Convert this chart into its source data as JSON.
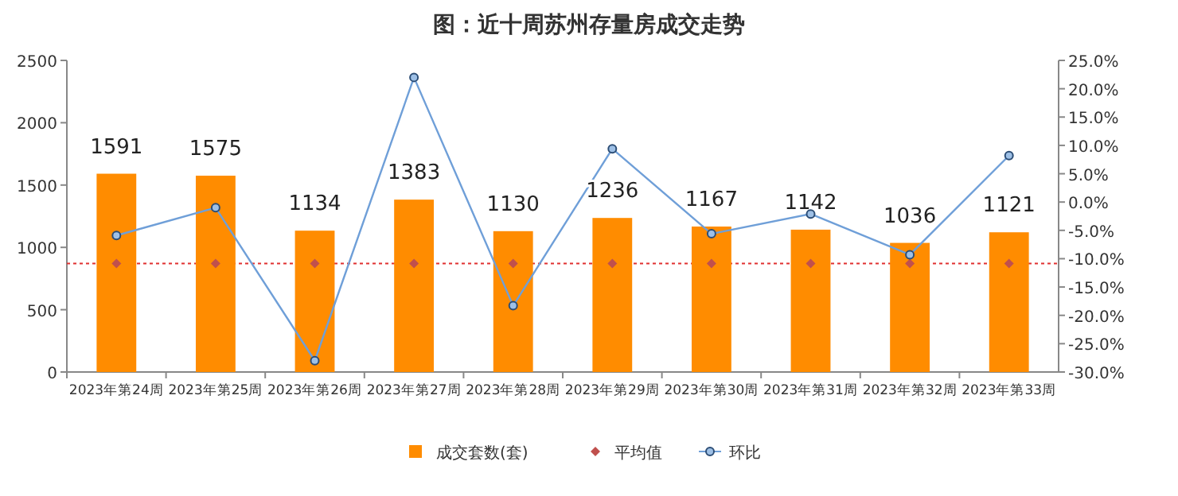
{
  "chart_data": {
    "type": "bar",
    "title": "图：近十周苏州存量房成交走势",
    "categories": [
      "2023年第24周",
      "2023年第25周",
      "2023年第26周",
      "2023年第27周",
      "2023年第28周",
      "2023年第29周",
      "2023年第30周",
      "2023年第31周",
      "2023年第32周",
      "2023年第33周"
    ],
    "series": [
      {
        "name": "成交套数(套)",
        "color": "#ff8c00",
        "values": [
          1591,
          1575,
          1134,
          1383,
          1130,
          1236,
          1167,
          1142,
          1036,
          1121
        ],
        "value_labels": [
          "1591",
          "1575",
          "1134",
          "1383",
          "1130",
          "1236",
          "1167",
          "1142",
          "1036",
          "1121"
        ]
      },
      {
        "name": "平均值",
        "type": "scatter",
        "marker": "diamond",
        "color": "#c0504d",
        "values": [
          870,
          870,
          870,
          870,
          870,
          870,
          870,
          870,
          870,
          870
        ]
      },
      {
        "name": "环比",
        "type": "line",
        "axis": "y2",
        "marker": "circle",
        "color": "#6f9fd8",
        "values": [
          -5.9,
          -1.0,
          -28.0,
          22.0,
          -18.3,
          9.4,
          -5.6,
          -2.1,
          -9.3,
          8.2
        ]
      }
    ],
    "ylim": [
      0,
      2500
    ],
    "yticks": [
      0,
      500,
      1000,
      1500,
      2000,
      2500
    ],
    "y2lim": [
      -30,
      25
    ],
    "y2ticks": [
      {
        "value": 25,
        "label": "25.0%"
      },
      {
        "value": 20,
        "label": "20.0%"
      },
      {
        "value": 15,
        "label": "15.0%"
      },
      {
        "value": 10,
        "label": "10.0%"
      },
      {
        "value": 5,
        "label": "5.0%"
      },
      {
        "value": 0,
        "label": "0.0%"
      },
      {
        "value": -5,
        "label": "-5.0%"
      },
      {
        "value": -10,
        "label": "-10.0%"
      },
      {
        "value": -15,
        "label": "-15.0%"
      },
      {
        "value": -20,
        "label": "-20.0%"
      },
      {
        "value": -25,
        "label": "-25.0%"
      },
      {
        "value": -30,
        "label": "-30.0%"
      }
    ],
    "ref_lines": [
      {
        "axis": "y",
        "value": 870,
        "color": "#e03030",
        "line_style": "dotted"
      }
    ],
    "legend": "bottom",
    "grid": false
  }
}
